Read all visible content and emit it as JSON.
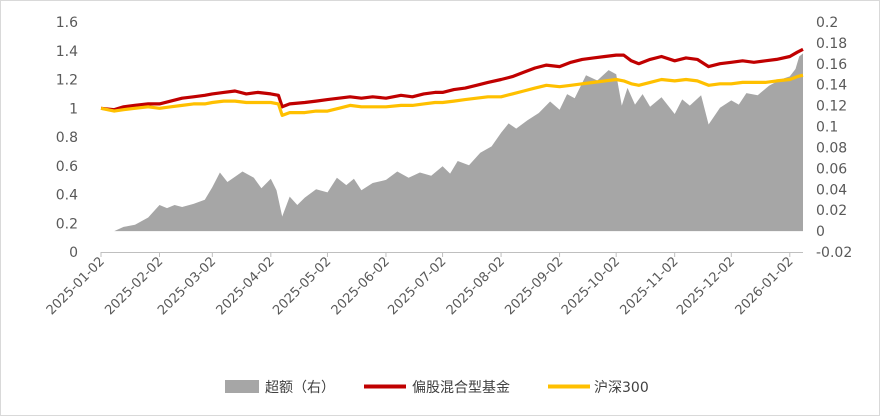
{
  "chart_data": {
    "type": "line",
    "title": "",
    "legend_position": "bottom",
    "grid": false,
    "x_ticks": [
      "2025-01-02",
      "2025-02-02",
      "2025-03-02",
      "2025-04-02",
      "2025-05-02",
      "2025-06-02",
      "2025-07-02",
      "2025-08-02",
      "2025-09-02",
      "2025-10-02",
      "2025-11-02",
      "2025-12-02",
      "2026-01-02"
    ],
    "y_left": {
      "range": [
        0,
        1.6
      ],
      "ticks": [
        "0",
        "0.2",
        "0.4",
        "0.6",
        "0.8",
        "1",
        "1.2",
        "1.4",
        "1.6"
      ]
    },
    "y_right": {
      "range": [
        -0.02,
        0.2
      ],
      "ticks": [
        "-0.02",
        "0",
        "0.02",
        "0.04",
        "0.06",
        "0.08",
        "0.1",
        "0.12",
        "0.14",
        "0.16",
        "0.18",
        "0.2"
      ]
    },
    "x_range": [
      "2025-01-02",
      "2026-01-09"
    ],
    "series": [
      {
        "name": "超额（右）",
        "type": "area",
        "axis": "right",
        "color": "#a6a6a6",
        "points": [
          [
            "2025-01-02",
            0.0
          ],
          [
            "2025-01-09",
            0.0
          ],
          [
            "2025-01-14",
            0.004
          ],
          [
            "2025-01-20",
            0.006
          ],
          [
            "2025-01-27",
            0.013
          ],
          [
            "2025-02-02",
            0.025
          ],
          [
            "2025-02-06",
            0.022
          ],
          [
            "2025-02-10",
            0.025
          ],
          [
            "2025-02-14",
            0.023
          ],
          [
            "2025-02-20",
            0.026
          ],
          [
            "2025-02-26",
            0.03
          ],
          [
            "2025-03-02",
            0.042
          ],
          [
            "2025-03-06",
            0.056
          ],
          [
            "2025-03-10",
            0.047
          ],
          [
            "2025-03-14",
            0.052
          ],
          [
            "2025-03-18",
            0.057
          ],
          [
            "2025-03-24",
            0.051
          ],
          [
            "2025-03-28",
            0.041
          ],
          [
            "2025-04-02",
            0.05
          ],
          [
            "2025-04-05",
            0.039
          ],
          [
            "2025-04-08",
            0.014
          ],
          [
            "2025-04-12",
            0.033
          ],
          [
            "2025-04-16",
            0.025
          ],
          [
            "2025-04-20",
            0.032
          ],
          [
            "2025-04-26",
            0.04
          ],
          [
            "2025-05-02",
            0.037
          ],
          [
            "2025-05-07",
            0.051
          ],
          [
            "2025-05-12",
            0.044
          ],
          [
            "2025-05-16",
            0.05
          ],
          [
            "2025-05-20",
            0.039
          ],
          [
            "2025-05-26",
            0.046
          ],
          [
            "2025-06-02",
            0.049
          ],
          [
            "2025-06-08",
            0.057
          ],
          [
            "2025-06-14",
            0.051
          ],
          [
            "2025-06-20",
            0.056
          ],
          [
            "2025-06-26",
            0.053
          ],
          [
            "2025-07-02",
            0.062
          ],
          [
            "2025-07-06",
            0.055
          ],
          [
            "2025-07-10",
            0.067
          ],
          [
            "2025-07-16",
            0.063
          ],
          [
            "2025-07-22",
            0.075
          ],
          [
            "2025-07-28",
            0.081
          ],
          [
            "2025-08-02",
            0.094
          ],
          [
            "2025-08-06",
            0.103
          ],
          [
            "2025-08-10",
            0.098
          ],
          [
            "2025-08-16",
            0.106
          ],
          [
            "2025-08-22",
            0.113
          ],
          [
            "2025-08-28",
            0.124
          ],
          [
            "2025-09-02",
            0.116
          ],
          [
            "2025-09-06",
            0.131
          ],
          [
            "2025-09-10",
            0.127
          ],
          [
            "2025-09-16",
            0.149
          ],
          [
            "2025-09-22",
            0.144
          ],
          [
            "2025-09-28",
            0.154
          ],
          [
            "2025-10-02",
            0.15
          ],
          [
            "2025-10-05",
            0.12
          ],
          [
            "2025-10-08",
            0.137
          ],
          [
            "2025-10-12",
            0.121
          ],
          [
            "2025-10-16",
            0.131
          ],
          [
            "2025-10-20",
            0.119
          ],
          [
            "2025-10-26",
            0.128
          ],
          [
            "2025-11-02",
            0.112
          ],
          [
            "2025-11-06",
            0.126
          ],
          [
            "2025-11-10",
            0.12
          ],
          [
            "2025-11-16",
            0.13
          ],
          [
            "2025-11-20",
            0.102
          ],
          [
            "2025-11-26",
            0.118
          ],
          [
            "2025-12-02",
            0.125
          ],
          [
            "2025-12-06",
            0.121
          ],
          [
            "2025-12-10",
            0.132
          ],
          [
            "2025-12-16",
            0.13
          ],
          [
            "2025-12-22",
            0.139
          ],
          [
            "2025-12-28",
            0.145
          ],
          [
            "2026-01-02",
            0.148
          ],
          [
            "2026-01-05",
            0.155
          ],
          [
            "2026-01-07",
            0.167
          ],
          [
            "2026-01-09",
            0.17
          ]
        ]
      },
      {
        "name": "偏股混合型基金",
        "type": "line",
        "axis": "left",
        "color": "#c00000",
        "points": [
          [
            "2025-01-02",
            1.0
          ],
          [
            "2025-01-09",
            0.99
          ],
          [
            "2025-01-14",
            1.01
          ],
          [
            "2025-01-20",
            1.02
          ],
          [
            "2025-01-27",
            1.03
          ],
          [
            "2025-02-02",
            1.03
          ],
          [
            "2025-02-08",
            1.05
          ],
          [
            "2025-02-14",
            1.07
          ],
          [
            "2025-02-20",
            1.08
          ],
          [
            "2025-02-26",
            1.09
          ],
          [
            "2025-03-02",
            1.1
          ],
          [
            "2025-03-08",
            1.11
          ],
          [
            "2025-03-14",
            1.12
          ],
          [
            "2025-03-20",
            1.1
          ],
          [
            "2025-03-26",
            1.11
          ],
          [
            "2025-04-02",
            1.1
          ],
          [
            "2025-04-06",
            1.09
          ],
          [
            "2025-04-08",
            1.01
          ],
          [
            "2025-04-12",
            1.03
          ],
          [
            "2025-04-20",
            1.04
          ],
          [
            "2025-04-26",
            1.05
          ],
          [
            "2025-05-02",
            1.06
          ],
          [
            "2025-05-08",
            1.07
          ],
          [
            "2025-05-14",
            1.08
          ],
          [
            "2025-05-20",
            1.07
          ],
          [
            "2025-05-26",
            1.08
          ],
          [
            "2025-06-02",
            1.07
          ],
          [
            "2025-06-10",
            1.09
          ],
          [
            "2025-06-16",
            1.08
          ],
          [
            "2025-06-22",
            1.1
          ],
          [
            "2025-06-28",
            1.11
          ],
          [
            "2025-07-02",
            1.11
          ],
          [
            "2025-07-08",
            1.13
          ],
          [
            "2025-07-14",
            1.14
          ],
          [
            "2025-07-20",
            1.16
          ],
          [
            "2025-07-26",
            1.18
          ],
          [
            "2025-08-02",
            1.2
          ],
          [
            "2025-08-08",
            1.22
          ],
          [
            "2025-08-14",
            1.25
          ],
          [
            "2025-08-20",
            1.28
          ],
          [
            "2025-08-26",
            1.3
          ],
          [
            "2025-09-02",
            1.29
          ],
          [
            "2025-09-08",
            1.32
          ],
          [
            "2025-09-14",
            1.34
          ],
          [
            "2025-09-20",
            1.35
          ],
          [
            "2025-09-26",
            1.36
          ],
          [
            "2025-10-02",
            1.37
          ],
          [
            "2025-10-06",
            1.37
          ],
          [
            "2025-10-10",
            1.33
          ],
          [
            "2025-10-14",
            1.31
          ],
          [
            "2025-10-20",
            1.34
          ],
          [
            "2025-10-26",
            1.36
          ],
          [
            "2025-11-02",
            1.33
          ],
          [
            "2025-11-08",
            1.35
          ],
          [
            "2025-11-14",
            1.34
          ],
          [
            "2025-11-20",
            1.29
          ],
          [
            "2025-11-26",
            1.31
          ],
          [
            "2025-12-02",
            1.32
          ],
          [
            "2025-12-08",
            1.33
          ],
          [
            "2025-12-14",
            1.32
          ],
          [
            "2025-12-20",
            1.33
          ],
          [
            "2025-12-26",
            1.34
          ],
          [
            "2026-01-02",
            1.36
          ],
          [
            "2026-01-06",
            1.39
          ],
          [
            "2026-01-09",
            1.41
          ]
        ]
      },
      {
        "name": "沪深300",
        "type": "line",
        "axis": "left",
        "color": "#ffc000",
        "points": [
          [
            "2025-01-02",
            1.0
          ],
          [
            "2025-01-09",
            0.98
          ],
          [
            "2025-01-14",
            0.99
          ],
          [
            "2025-01-20",
            1.0
          ],
          [
            "2025-01-27",
            1.01
          ],
          [
            "2025-02-02",
            1.0
          ],
          [
            "2025-02-08",
            1.01
          ],
          [
            "2025-02-14",
            1.02
          ],
          [
            "2025-02-20",
            1.03
          ],
          [
            "2025-02-26",
            1.03
          ],
          [
            "2025-03-02",
            1.04
          ],
          [
            "2025-03-08",
            1.05
          ],
          [
            "2025-03-14",
            1.05
          ],
          [
            "2025-03-20",
            1.04
          ],
          [
            "2025-03-26",
            1.04
          ],
          [
            "2025-04-02",
            1.04
          ],
          [
            "2025-04-06",
            1.03
          ],
          [
            "2025-04-08",
            0.95
          ],
          [
            "2025-04-12",
            0.97
          ],
          [
            "2025-04-20",
            0.97
          ],
          [
            "2025-04-26",
            0.98
          ],
          [
            "2025-05-02",
            0.98
          ],
          [
            "2025-05-08",
            1.0
          ],
          [
            "2025-05-14",
            1.02
          ],
          [
            "2025-05-20",
            1.01
          ],
          [
            "2025-05-26",
            1.01
          ],
          [
            "2025-06-02",
            1.01
          ],
          [
            "2025-06-10",
            1.02
          ],
          [
            "2025-06-16",
            1.02
          ],
          [
            "2025-06-22",
            1.03
          ],
          [
            "2025-06-28",
            1.04
          ],
          [
            "2025-07-02",
            1.04
          ],
          [
            "2025-07-08",
            1.05
          ],
          [
            "2025-07-14",
            1.06
          ],
          [
            "2025-07-20",
            1.07
          ],
          [
            "2025-07-26",
            1.08
          ],
          [
            "2025-08-02",
            1.08
          ],
          [
            "2025-08-08",
            1.1
          ],
          [
            "2025-08-14",
            1.12
          ],
          [
            "2025-08-20",
            1.14
          ],
          [
            "2025-08-26",
            1.16
          ],
          [
            "2025-09-02",
            1.15
          ],
          [
            "2025-09-08",
            1.16
          ],
          [
            "2025-09-14",
            1.17
          ],
          [
            "2025-09-20",
            1.18
          ],
          [
            "2025-09-26",
            1.19
          ],
          [
            "2025-10-02",
            1.2
          ],
          [
            "2025-10-06",
            1.19
          ],
          [
            "2025-10-10",
            1.17
          ],
          [
            "2025-10-14",
            1.16
          ],
          [
            "2025-10-20",
            1.18
          ],
          [
            "2025-10-26",
            1.2
          ],
          [
            "2025-11-02",
            1.19
          ],
          [
            "2025-11-08",
            1.2
          ],
          [
            "2025-11-14",
            1.19
          ],
          [
            "2025-11-20",
            1.16
          ],
          [
            "2025-11-26",
            1.17
          ],
          [
            "2025-12-02",
            1.17
          ],
          [
            "2025-12-08",
            1.18
          ],
          [
            "2025-12-14",
            1.18
          ],
          [
            "2025-12-20",
            1.18
          ],
          [
            "2025-12-26",
            1.19
          ],
          [
            "2026-01-02",
            1.2
          ],
          [
            "2026-01-06",
            1.22
          ],
          [
            "2026-01-09",
            1.23
          ]
        ]
      }
    ]
  }
}
